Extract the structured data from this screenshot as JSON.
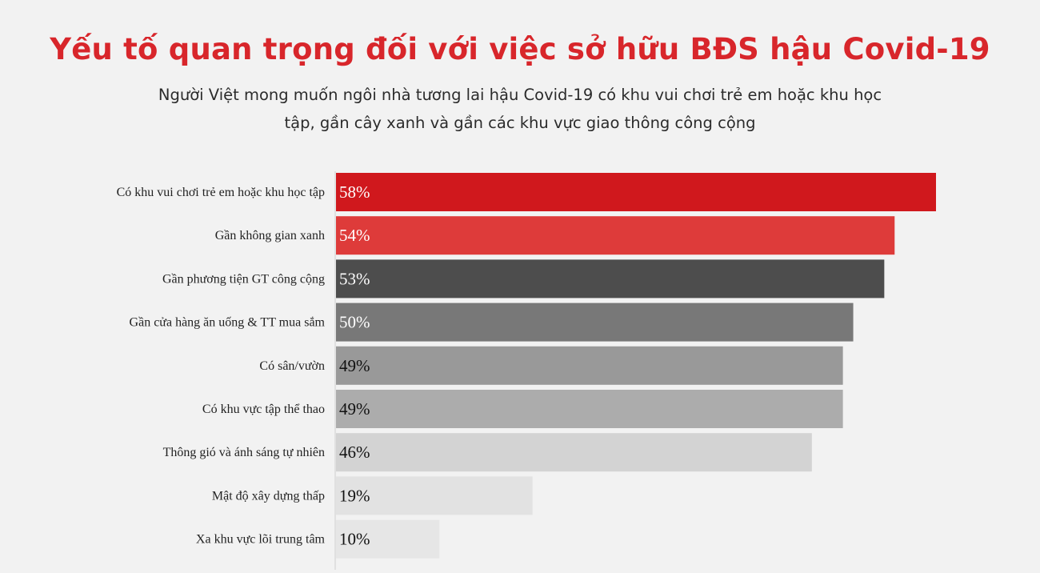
{
  "chart_data": {
    "type": "bar",
    "orientation": "horizontal",
    "title": "Yếu tố quan trọng đối với việc sở hữu BĐS hậu Covid-19",
    "subtitle": "Người Việt mong muốn ngôi nhà tương lai hậu Covid-19 có khu vui chơi trẻ em hoặc khu học tập, gần cây xanh và gần các khu vực giao thông công cộng",
    "categories": [
      "Có khu vui chơi trẻ em hoặc khu học tập",
      "Gần không gian xanh",
      "Gần phương tiện GT công cộng",
      "Gần cửa hàng ăn uống & TT mua sắm",
      "Có sân/vườn",
      "Có khu vực tập thể thao",
      "Thông gió và ánh sáng tự nhiên",
      "Mật độ xây dựng thấp",
      "Xa khu vực lõi trung tâm"
    ],
    "values": [
      58,
      54,
      53,
      50,
      49,
      49,
      46,
      19,
      10
    ],
    "value_labels": [
      "58%",
      "54%",
      "53%",
      "50%",
      "49%",
      "49%",
      "46%",
      "19%",
      "10%"
    ],
    "unit": "%",
    "xlim": [
      0,
      58
    ],
    "grid": false,
    "legend": "none",
    "bar_colors": [
      "#d0181d",
      "#de3b3a",
      "#4d4d4d",
      "#787878",
      "#999999",
      "#acacac",
      "#d3d3d3",
      "#e2e2e2",
      "#e6e6e6"
    ],
    "label_colors": [
      "#ffffff",
      "#ffffff",
      "#ffffff",
      "#ffffff",
      "#111111",
      "#111111",
      "#111111",
      "#111111",
      "#111111"
    ]
  }
}
